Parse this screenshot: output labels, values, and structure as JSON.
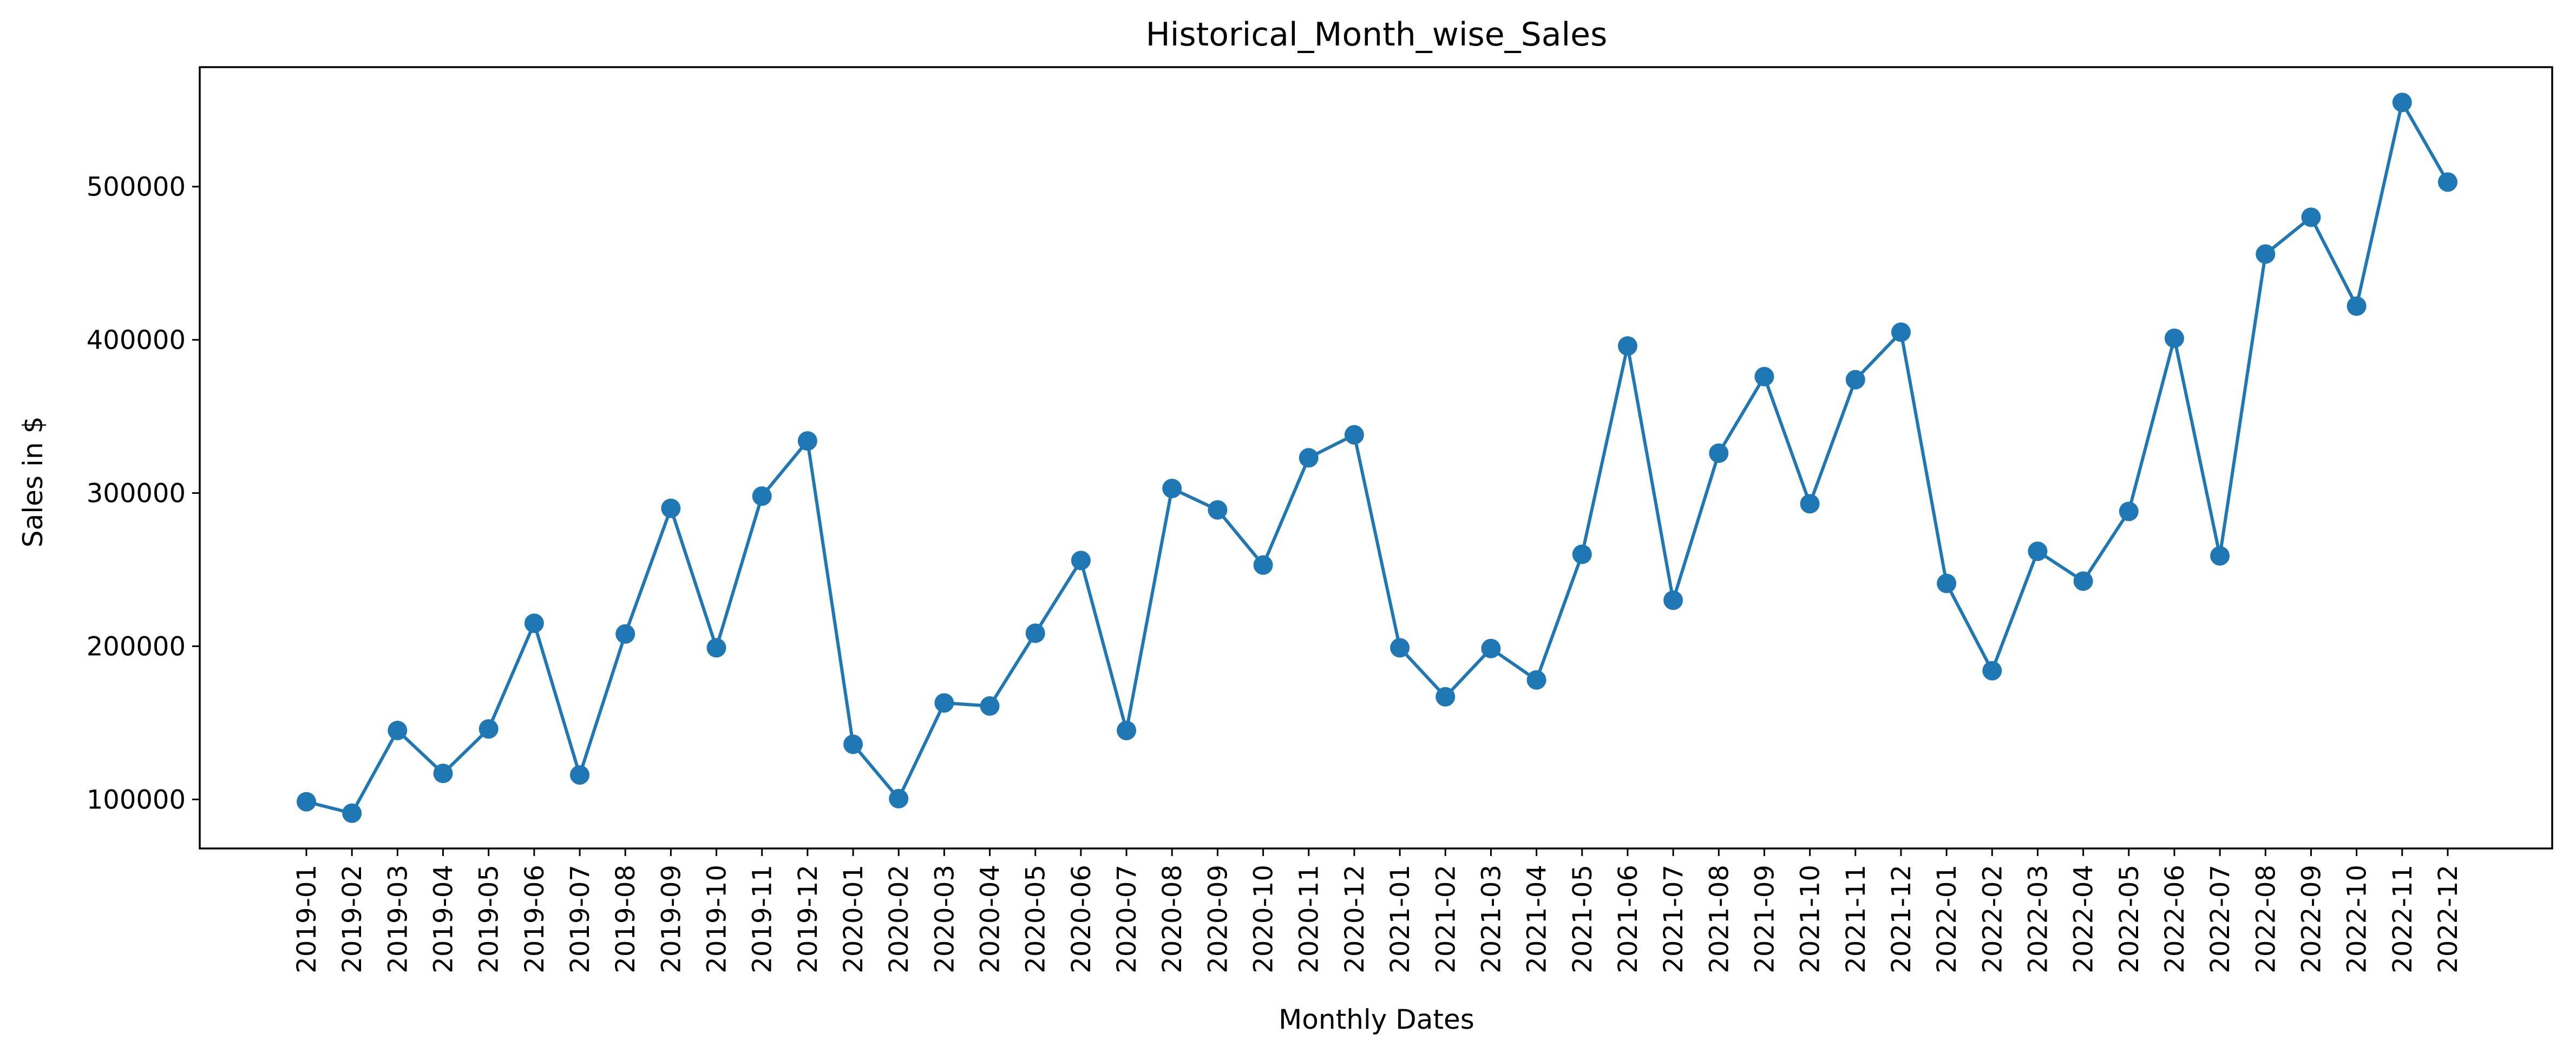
{
  "chart_data": {
    "type": "line",
    "title": "Historical_Month_wise_Sales",
    "xlabel": "Monthly Dates",
    "ylabel": "Sales in $",
    "ylim": [
      68000,
      578000
    ],
    "yticks": [
      100000,
      200000,
      300000,
      400000,
      500000
    ],
    "grid": false,
    "legend": "none",
    "color": "#1f77b4",
    "markers": "circle",
    "x": [
      "2019-01",
      "2019-02",
      "2019-03",
      "2019-04",
      "2019-05",
      "2019-06",
      "2019-07",
      "2019-08",
      "2019-09",
      "2019-10",
      "2019-11",
      "2019-12",
      "2020-01",
      "2020-02",
      "2020-03",
      "2020-04",
      "2020-05",
      "2020-06",
      "2020-07",
      "2020-08",
      "2020-09",
      "2020-10",
      "2020-11",
      "2020-12",
      "2021-01",
      "2021-02",
      "2021-03",
      "2021-04",
      "2021-05",
      "2021-06",
      "2021-07",
      "2021-08",
      "2021-09",
      "2021-10",
      "2021-11",
      "2021-12",
      "2022-01",
      "2022-02",
      "2022-03",
      "2022-04",
      "2022-05",
      "2022-06",
      "2022-07",
      "2022-08",
      "2022-09",
      "2022-10",
      "2022-11",
      "2022-12"
    ],
    "series": [
      {
        "values": [
          98500,
          91000,
          145000,
          117000,
          146000,
          215000,
          116000,
          208000,
          290000,
          199000,
          298000,
          334000,
          136000,
          100500,
          163000,
          161000,
          208500,
          256000,
          145000,
          303000,
          289000,
          253000,
          323000,
          338000,
          199000,
          167000,
          198500,
          178000,
          260000,
          396000,
          230000,
          326000,
          376000,
          293000,
          374000,
          405000,
          241000,
          184000,
          262000,
          242500,
          288000,
          401000,
          259000,
          456000,
          480000,
          422000,
          555000,
          503000
        ]
      }
    ]
  }
}
